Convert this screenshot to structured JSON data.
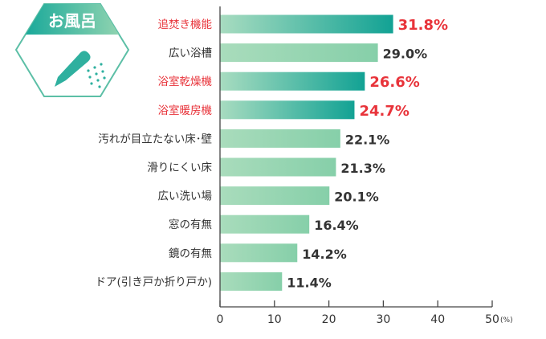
{
  "badge": {
    "label": "お風呂",
    "icon": "shower-head-icon"
  },
  "chart_data": {
    "type": "bar",
    "orientation": "horizontal",
    "categories": [
      "追焚き機能",
      "広い浴槽",
      "浴室乾燥機",
      "浴室暖房機",
      "汚れが目立たない床･壁",
      "滑りにくい床",
      "広い洗い場",
      "窓の有無",
      "鏡の有無",
      "ドア(引き戸か折り戸か)"
    ],
    "values": [
      31.8,
      29.0,
      26.6,
      24.7,
      22.1,
      21.3,
      20.1,
      16.4,
      14.2,
      11.4
    ],
    "value_labels": [
      "31.8%",
      "29.0%",
      "26.6%",
      "24.7%",
      "22.1%",
      "21.3%",
      "20.1%",
      "16.4%",
      "14.2%",
      "11.4%"
    ],
    "highlighted": [
      true,
      false,
      true,
      true,
      false,
      false,
      false,
      false,
      false,
      false
    ],
    "xlim": [
      0,
      50
    ],
    "xticks": [
      "0",
      "10",
      "20",
      "30",
      "40",
      "50"
    ],
    "xunit": "(%)",
    "grid": false,
    "colors": {
      "highlight_text": "#e8333a",
      "normal_text": "#333333",
      "highlight_bar": "#1aa99a",
      "normal_bar": "#8fd3b0"
    }
  }
}
